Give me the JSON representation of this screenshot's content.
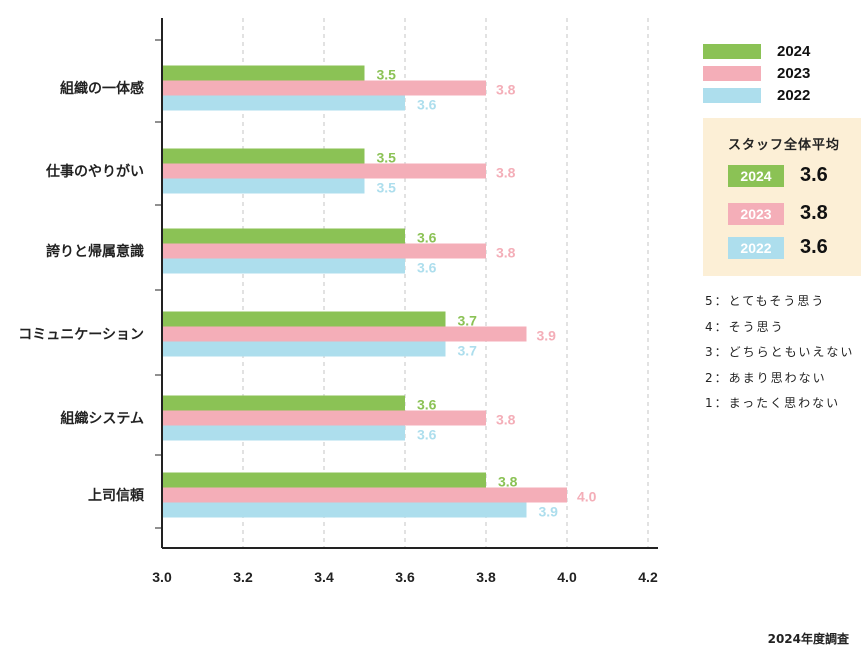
{
  "chart_data": {
    "type": "bar",
    "orientation": "horizontal",
    "categories": [
      "組織の一体感",
      "仕事のやりがい",
      "誇りと帰属意識",
      "コミュニケーション",
      "組織システム",
      "上司信頼"
    ],
    "series": [
      {
        "name": "2024",
        "color": "#8bc255",
        "values": [
          3.5,
          3.5,
          3.6,
          3.7,
          3.6,
          3.8
        ]
      },
      {
        "name": "2023",
        "color": "#f4aeb8",
        "values": [
          3.8,
          3.8,
          3.8,
          3.9,
          3.8,
          4.0
        ]
      },
      {
        "name": "2022",
        "color": "#addeed",
        "values": [
          3.6,
          3.5,
          3.6,
          3.7,
          3.6,
          3.9
        ]
      }
    ],
    "xlim": [
      3.0,
      4.2
    ],
    "xticks": [
      "3.0",
      "3.2",
      "3.4",
      "3.6",
      "3.8",
      "4.0",
      "4.2"
    ],
    "grid": "vertical dashed",
    "legend": "top-right"
  },
  "averages": {
    "title": "スタッフ全体平均",
    "rows": [
      {
        "year": "2024",
        "value": "3.6",
        "color": "#8bc255"
      },
      {
        "year": "2023",
        "value": "3.8",
        "color": "#f4aeb8"
      },
      {
        "year": "2022",
        "value": "3.6",
        "color": "#addeed"
      }
    ]
  },
  "scale": [
    "5：とてもそう思う",
    "4：そう思う",
    "3：どちらともいえない",
    "2：あまり思わない",
    "1：まったく思わない"
  ],
  "note": "2024年度調査"
}
